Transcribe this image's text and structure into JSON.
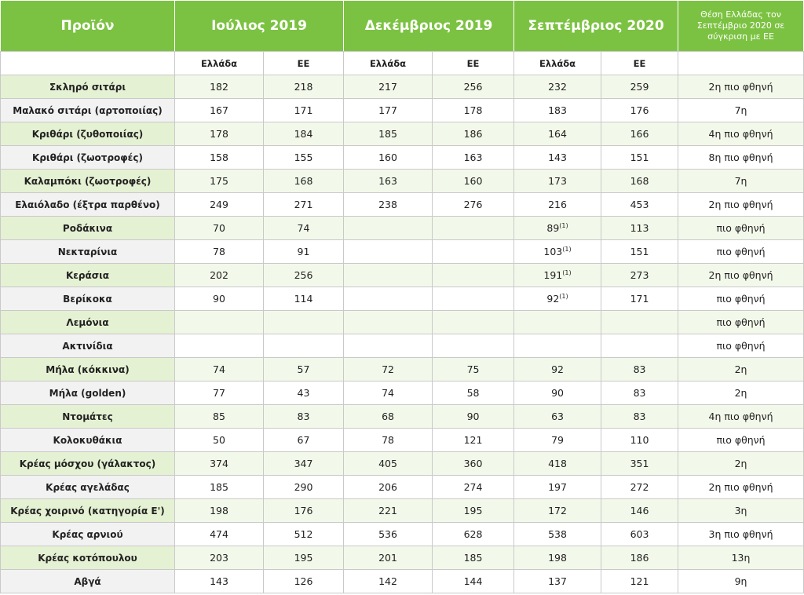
{
  "table": {
    "header": [
      "Προϊόν",
      "Ιούλιος 2019",
      "Δεκέμβριος 2019",
      "Σεπτέμβριος 2020",
      "Θέση Ελλάδας τον Σεπτέμβριο 2020 σε σύγκριση με ΕΕ"
    ],
    "subheader": [
      "Ελλάδα",
      "ΕΕ",
      "Ελλάδα",
      "ΕΕ",
      "Ελλάδα",
      "ΕΕ"
    ],
    "rows": [
      {
        "product": "Σκληρό σιτάρι",
        "values": [
          182,
          218,
          217,
          256,
          232,
          259
        ],
        "position": "2η πιο φθηνή"
      },
      {
        "product": "Μαλακό σιτάρι (αρτοποιίας)",
        "values": [
          167,
          171,
          177,
          178,
          183,
          176
        ],
        "position": "7η"
      },
      {
        "product": "Κριθάρι (ζυθοποιίας)",
        "values": [
          178,
          184,
          185,
          186,
          164,
          166
        ],
        "position": "4η πιο φθηνή"
      },
      {
        "product": "Κριθάρι (ζωοτροφές)",
        "values": [
          158,
          155,
          160,
          163,
          143,
          151
        ],
        "position": "8η πιο φθηνή"
      },
      {
        "product": "Καλαμπόκι (ζωοτροφές)",
        "values": [
          175,
          168,
          163,
          160,
          173,
          168
        ],
        "position": "7η"
      },
      {
        "product": "Ελαιόλαδο (έξτρα παρθένο)",
        "values": [
          249,
          271,
          238,
          276,
          216,
          453
        ],
        "position": "2η πιο φθηνή"
      },
      {
        "product": "Ροδάκινα",
        "values": [
          70,
          74,
          null,
          null,
          {
            "value": 89,
            "note": "(1)"
          },
          113
        ],
        "position": "πιο φθηνή"
      },
      {
        "product": "Νεκταρίνια",
        "values": [
          78,
          91,
          null,
          null,
          {
            "value": 103,
            "note": "(1)"
          },
          151
        ],
        "position": "πιο φθηνή"
      },
      {
        "product": "Κεράσια",
        "values": [
          202,
          256,
          null,
          null,
          {
            "value": 191,
            "note": "(1)"
          },
          273
        ],
        "position": "2η πιο φθηνή"
      },
      {
        "product": "Βερίκοκα",
        "values": [
          90,
          114,
          null,
          null,
          {
            "value": 92,
            "note": "(1)"
          },
          171
        ],
        "position": "πιο φθηνή"
      },
      {
        "product": "Λεμόνια",
        "values": [
          null,
          null,
          null,
          null,
          null,
          null
        ],
        "position": "πιο φθηνή"
      },
      {
        "product": "Ακτινίδια",
        "values": [
          null,
          null,
          null,
          null,
          null,
          null
        ],
        "position": "πιο φθηνή"
      },
      {
        "product": "Μήλα (κόκκινα)",
        "values": [
          74,
          57,
          72,
          75,
          92,
          83
        ],
        "position": "2η"
      },
      {
        "product": "Μήλα (golden)",
        "values": [
          77,
          43,
          74,
          58,
          90,
          83
        ],
        "position": "2η"
      },
      {
        "product": "Ντομάτες",
        "values": [
          85,
          83,
          68,
          90,
          63,
          83
        ],
        "position": "4η πιο φθηνή"
      },
      {
        "product": "Κολοκυθάκια",
        "values": [
          50,
          67,
          78,
          121,
          79,
          110
        ],
        "position": "πιο φθηνή"
      },
      {
        "product": "Κρέας μόσχου (γάλακτος)",
        "values": [
          374,
          347,
          405,
          360,
          418,
          351
        ],
        "position": "2η"
      },
      {
        "product": "Κρέας αγελάδας",
        "values": [
          185,
          290,
          206,
          274,
          197,
          272
        ],
        "position": "2η πιο φθηνή"
      },
      {
        "product": "Κρέας χοιρινό (κατηγορία Ε')",
        "values": [
          198,
          176,
          221,
          195,
          172,
          146
        ],
        "position": "3η"
      },
      {
        "product": "Κρέας αρνιού",
        "values": [
          474,
          512,
          536,
          628,
          538,
          603
        ],
        "position": "3η πιο φθηνή"
      },
      {
        "product": "Κρέας κοτόπουλου",
        "values": [
          203,
          195,
          201,
          185,
          198,
          186
        ],
        "position": "13η"
      },
      {
        "product": "Αβγά",
        "values": [
          143,
          126,
          142,
          144,
          137,
          121
        ],
        "position": "9η"
      }
    ]
  }
}
